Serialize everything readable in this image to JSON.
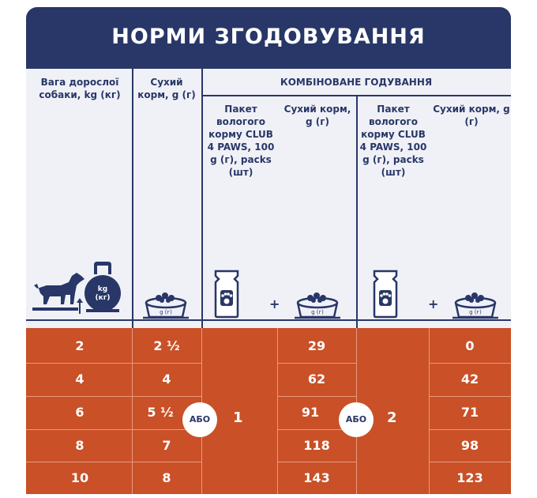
{
  "title": "НОРМИ ЗГОДОВУВАННЯ",
  "headers": {
    "weight": "Вага дорослої собаки, kg (кг)",
    "dry": "Сухий корм, g (г)",
    "combined": "КОМБІНОВАНЕ ГОДУВАННЯ",
    "pack": "Пакет вологого корму CLUB 4 PAWS, 100 g (г), packs (шт)",
    "dry2": "Сухий корм, g (г)"
  },
  "icons": {
    "kettlebell_label": "kg (кг)",
    "bowl_label": "g (г)",
    "plus": "+"
  },
  "connector": "АБО",
  "packs": [
    "1",
    "2"
  ],
  "rows": [
    {
      "weight": "2",
      "dry": "2 ½",
      "dry_a": "29",
      "dry_b": "0"
    },
    {
      "weight": "4",
      "dry": "4",
      "dry_a": "62",
      "dry_b": "42"
    },
    {
      "weight": "6",
      "dry": "5 ½",
      "dry_a": "91",
      "dry_b": "71"
    },
    {
      "weight": "8",
      "dry": "7",
      "dry_a": "118",
      "dry_b": "98"
    },
    {
      "weight": "10",
      "dry": "8",
      "dry_a": "143",
      "dry_b": "123"
    }
  ],
  "colors": {
    "navy": "#283767",
    "orange": "#c95027",
    "panel": "#f0f1f7"
  }
}
